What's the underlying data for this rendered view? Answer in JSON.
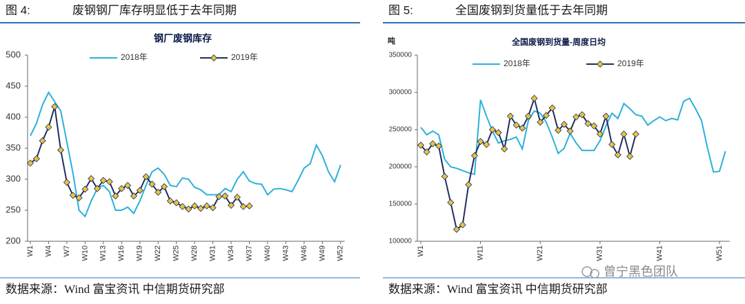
{
  "figures": [
    {
      "number": "图 4:",
      "caption": "废钢钢厂库存明显低于去年同期",
      "source": "数据来源：Wind  富宝资讯  中信期货研究部"
    },
    {
      "number": "图 5:",
      "caption": "全国废钢到货量低于去年同期",
      "source": "数据来源：Wind  富宝资讯  中信期货研究部"
    }
  ],
  "watermark": "曾宁黑色团队",
  "chart_data": [
    {
      "type": "line",
      "title": "钢厂废钢库存",
      "categories": [
        "W1",
        null,
        null,
        "W4",
        null,
        null,
        "W7",
        null,
        null,
        "W10",
        null,
        null,
        "W13",
        null,
        null,
        "W16",
        null,
        null,
        "W19",
        null,
        null,
        "W22",
        null,
        null,
        "W25",
        null,
        null,
        "W28",
        null,
        null,
        "W31",
        null,
        null,
        "W34",
        null,
        null,
        "W37",
        null,
        null,
        "W40",
        null,
        null,
        "W43",
        null,
        null,
        "W46",
        null,
        null,
        "W49",
        null,
        null,
        "W52"
      ],
      "series": [
        {
          "name": "2018年",
          "color": "#2ab0d9",
          "values": [
            370,
            390,
            420,
            440,
            425,
            410,
            360,
            310,
            250,
            240,
            265,
            285,
            290,
            280,
            250,
            250,
            255,
            245,
            265,
            290,
            312,
            318,
            308,
            290,
            288,
            302,
            300,
            287,
            283,
            275,
            275,
            275,
            285,
            280,
            300,
            312,
            297,
            293,
            292,
            275,
            284,
            285,
            283,
            280,
            298,
            318,
            325,
            355,
            338,
            312,
            296,
            323
          ]
        },
        {
          "name": "2019年",
          "color": "#1f2d5e",
          "marker": "diamond",
          "marker_color": "#e6c43f",
          "values": [
            326,
            333,
            362,
            384,
            417,
            347,
            295,
            274,
            270,
            284,
            301,
            285,
            298,
            296,
            273,
            285,
            290,
            273,
            282,
            304,
            292,
            279,
            288,
            265,
            262,
            256,
            252,
            257,
            253,
            257,
            254,
            272,
            273,
            258,
            271,
            256,
            257,
            null,
            null,
            null,
            null,
            null,
            null,
            null,
            null,
            null,
            null,
            null,
            null,
            null,
            null,
            null
          ]
        }
      ],
      "ylim": [
        200,
        500
      ],
      "yticks": [
        200,
        250,
        300,
        350,
        400,
        450,
        500
      ]
    },
    {
      "type": "line",
      "title": "全国废钢到货量-周度日均",
      "ylabel": "吨",
      "categories": [
        "W1",
        null,
        null,
        null,
        null,
        null,
        null,
        null,
        null,
        null,
        "W11",
        null,
        null,
        null,
        null,
        null,
        null,
        null,
        null,
        null,
        "W21",
        null,
        null,
        null,
        null,
        null,
        null,
        null,
        null,
        null,
        "W31",
        null,
        null,
        null,
        null,
        null,
        null,
        null,
        null,
        null,
        "W41",
        null,
        null,
        null,
        null,
        null,
        null,
        null,
        null,
        null,
        "W51",
        null
      ],
      "series": [
        {
          "name": "2018年",
          "color": "#2ab0d9",
          "values": [
            253000,
            243000,
            248000,
            243000,
            210000,
            200000,
            198000,
            195000,
            192000,
            190000,
            290000,
            268000,
            248000,
            232000,
            235000,
            237000,
            240000,
            224000,
            262000,
            275000,
            272000,
            260000,
            240000,
            218000,
            225000,
            245000,
            232000,
            222000,
            222000,
            222000,
            235000,
            255000,
            272000,
            265000,
            285000,
            278000,
            270000,
            268000,
            256000,
            262000,
            267000,
            262000,
            265000,
            263000,
            288000,
            292000,
            278000,
            262000,
            225000,
            193000,
            194000,
            221000
          ]
        },
        {
          "name": "2019年",
          "color": "#1f2d5e",
          "marker": "diamond",
          "marker_color": "#e6c43f",
          "values": [
            229000,
            220000,
            231000,
            228000,
            187000,
            152000,
            116000,
            122000,
            176000,
            215000,
            234000,
            230000,
            250000,
            246000,
            224000,
            268000,
            256000,
            252000,
            268000,
            292000,
            260000,
            269000,
            279000,
            249000,
            257000,
            248000,
            267000,
            270000,
            258000,
            255000,
            244000,
            268000,
            230000,
            216000,
            244000,
            214000,
            244000,
            null,
            null,
            null,
            null,
            null,
            null,
            null,
            null,
            null,
            null,
            null,
            null,
            null,
            null,
            null
          ]
        }
      ],
      "ylim": [
        100000,
        350000
      ],
      "yticks": [
        100000,
        150000,
        200000,
        250000,
        300000,
        350000
      ]
    }
  ]
}
